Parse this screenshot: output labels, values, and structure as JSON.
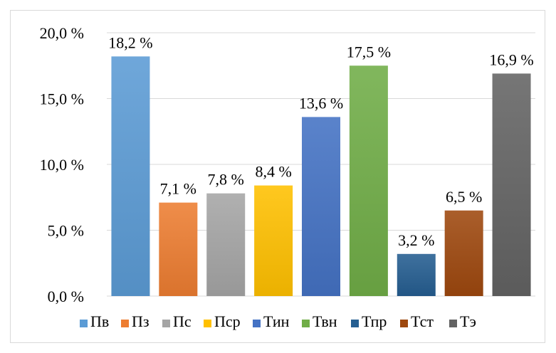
{
  "chart_data": {
    "type": "bar",
    "categories": [
      "Пв",
      "Пз",
      "Пс",
      "Пср",
      "Тин",
      "Твн",
      "Тпр",
      "Тст",
      "Тэ"
    ],
    "values": [
      18.2,
      7.1,
      7.8,
      8.4,
      13.6,
      17.5,
      3.2,
      6.5,
      16.9
    ],
    "data_labels": [
      "18,2 %",
      "7,1  %",
      "7,8  %",
      "8,4 %",
      "13,6 %",
      "17,5 %",
      "3,2 %",
      "6,5 %",
      "16,9 %"
    ],
    "colors": [
      "#5b9bd5",
      "#ed7d31",
      "#a5a5a5",
      "#ffc000",
      "#4472c4",
      "#70ad47",
      "#255e91",
      "#9e480e",
      "#636363"
    ],
    "ylim": [
      0,
      20
    ],
    "y_ticks": [
      0,
      5,
      10,
      15,
      20
    ],
    "y_tick_labels": [
      "0,0 %",
      "5,0 %",
      "10,0 %",
      "15,0 %",
      "20,0 %"
    ],
    "grid": true,
    "legend_position": "bottom",
    "title": "",
    "xlabel": "",
    "ylabel": ""
  }
}
